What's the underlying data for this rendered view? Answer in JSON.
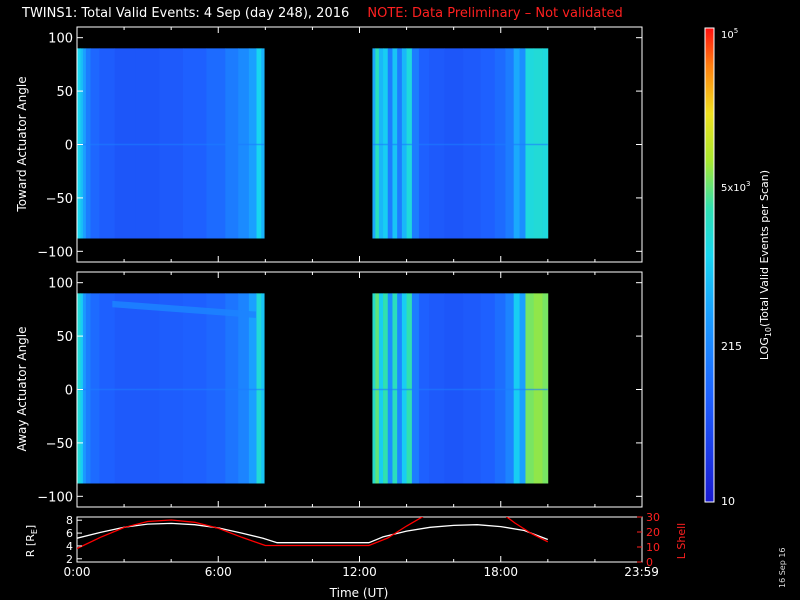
{
  "title": {
    "main": "TWINS1: Total Valid Events:  4 Sep (day 248), 2016",
    "note": "NOTE: Data Preliminary – Not validated"
  },
  "date_stamp": "16 Sep 16",
  "colors": {
    "background": "#000000",
    "foreground": "#ffffff",
    "note": "#ff2020",
    "l_shell_trace": "#ff0000",
    "r_trace": "#ffffff"
  },
  "chart_data": [
    {
      "type": "heatmap",
      "panel": "top",
      "ylabel": "Toward Actuator Angle",
      "ylim": [
        -110,
        110
      ],
      "yticks": [
        100,
        50,
        0,
        -50,
        -100
      ],
      "ytick_labels": [
        "100",
        "50",
        "0",
        "−50",
        "−100"
      ],
      "xlim": [
        0,
        24
      ],
      "data_blocks_hours": [
        [
          0.0,
          7.95
        ],
        [
          12.55,
          20.0
        ]
      ],
      "angle_range": [
        -88,
        90
      ],
      "column_levels_note": "0=dark blue (~10) to 1=red (~1e5)",
      "columns": [
        {
          "t": 0.1,
          "v": 0.52
        },
        {
          "t": 0.2,
          "v": 0.47
        },
        {
          "t": 0.3,
          "v": 0.4
        },
        {
          "t": 0.45,
          "v": 0.3
        },
        {
          "t": 0.7,
          "v": 0.24
        },
        {
          "t": 1.2,
          "v": 0.21
        },
        {
          "t": 2.0,
          "v": 0.19
        },
        {
          "t": 3.0,
          "v": 0.19
        },
        {
          "t": 4.0,
          "v": 0.2
        },
        {
          "t": 5.0,
          "v": 0.22
        },
        {
          "t": 6.0,
          "v": 0.25
        },
        {
          "t": 6.6,
          "v": 0.3
        },
        {
          "t": 7.1,
          "v": 0.34
        },
        {
          "t": 7.5,
          "v": 0.4
        },
        {
          "t": 7.75,
          "v": 0.52
        },
        {
          "t": 7.9,
          "v": 0.44
        },
        {
          "t": 12.6,
          "v": 0.42
        },
        {
          "t": 12.75,
          "v": 0.6
        },
        {
          "t": 12.9,
          "v": 0.45
        },
        {
          "t": 13.1,
          "v": 0.5
        },
        {
          "t": 13.3,
          "v": 0.3
        },
        {
          "t": 13.5,
          "v": 0.48
        },
        {
          "t": 13.7,
          "v": 0.3
        },
        {
          "t": 13.9,
          "v": 0.45
        },
        {
          "t": 14.1,
          "v": 0.55
        },
        {
          "t": 14.35,
          "v": 0.3
        },
        {
          "t": 14.7,
          "v": 0.22
        },
        {
          "t": 15.2,
          "v": 0.2
        },
        {
          "t": 16.0,
          "v": 0.19
        },
        {
          "t": 16.8,
          "v": 0.2
        },
        {
          "t": 17.5,
          "v": 0.22
        },
        {
          "t": 18.0,
          "v": 0.25
        },
        {
          "t": 18.4,
          "v": 0.3
        },
        {
          "t": 18.7,
          "v": 0.42
        },
        {
          "t": 18.9,
          "v": 0.35
        },
        {
          "t": 19.2,
          "v": 0.55
        },
        {
          "t": 19.6,
          "v": 0.56
        },
        {
          "t": 19.95,
          "v": 0.55
        }
      ]
    },
    {
      "type": "heatmap",
      "panel": "middle",
      "ylabel": "Away Actuator Angle",
      "ylim": [
        -110,
        110
      ],
      "yticks": [
        100,
        50,
        0,
        -50,
        -100
      ],
      "ytick_labels": [
        "100",
        "50",
        "0",
        "−50",
        "−100"
      ],
      "xlim": [
        0,
        24
      ],
      "data_blocks_hours": [
        [
          0.0,
          7.95
        ],
        [
          12.55,
          20.0
        ]
      ],
      "angle_range": [
        -88,
        90
      ],
      "column_levels_note": "0=dark blue (~10) to 1=red (~1e5)",
      "columns": [
        {
          "t": 0.1,
          "v": 0.56
        },
        {
          "t": 0.2,
          "v": 0.5
        },
        {
          "t": 0.3,
          "v": 0.38
        },
        {
          "t": 0.45,
          "v": 0.3
        },
        {
          "t": 0.7,
          "v": 0.25
        },
        {
          "t": 1.2,
          "v": 0.22
        },
        {
          "t": 2.0,
          "v": 0.2
        },
        {
          "t": 3.0,
          "v": 0.2
        },
        {
          "t": 4.0,
          "v": 0.21
        },
        {
          "t": 5.0,
          "v": 0.22
        },
        {
          "t": 6.0,
          "v": 0.24
        },
        {
          "t": 6.6,
          "v": 0.28
        },
        {
          "t": 7.1,
          "v": 0.32
        },
        {
          "t": 7.5,
          "v": 0.4
        },
        {
          "t": 7.75,
          "v": 0.56
        },
        {
          "t": 7.9,
          "v": 0.48
        },
        {
          "t": 12.6,
          "v": 0.58
        },
        {
          "t": 12.75,
          "v": 0.66
        },
        {
          "t": 12.9,
          "v": 0.5
        },
        {
          "t": 13.1,
          "v": 0.62
        },
        {
          "t": 13.3,
          "v": 0.35
        },
        {
          "t": 13.5,
          "v": 0.6
        },
        {
          "t": 13.7,
          "v": 0.33
        },
        {
          "t": 13.9,
          "v": 0.5
        },
        {
          "t": 14.1,
          "v": 0.62
        },
        {
          "t": 14.35,
          "v": 0.3
        },
        {
          "t": 14.7,
          "v": 0.22
        },
        {
          "t": 15.2,
          "v": 0.2
        },
        {
          "t": 16.0,
          "v": 0.19
        },
        {
          "t": 16.8,
          "v": 0.2
        },
        {
          "t": 17.5,
          "v": 0.22
        },
        {
          "t": 18.0,
          "v": 0.26
        },
        {
          "t": 18.4,
          "v": 0.32
        },
        {
          "t": 18.7,
          "v": 0.5
        },
        {
          "t": 18.9,
          "v": 0.4
        },
        {
          "t": 19.2,
          "v": 0.68
        },
        {
          "t": 19.6,
          "v": 0.7
        },
        {
          "t": 19.95,
          "v": 0.68
        }
      ],
      "features": [
        {
          "name": "upper-band",
          "t_range": [
            1.5,
            7.6
          ],
          "angle_start": 80,
          "angle_end": 70,
          "v": 0.32
        }
      ]
    },
    {
      "type": "line",
      "panel": "bottom",
      "ylabel_left": "R [RE]",
      "ylabel_right": "L Shell",
      "yticks_left": [
        2,
        4,
        6,
        8
      ],
      "yticks_right": [
        0,
        10,
        20,
        30
      ],
      "ylim_left": [
        1.5,
        8.5
      ],
      "ylim_right": [
        0,
        30
      ],
      "xlim": [
        0,
        24
      ],
      "xticks": [
        0,
        6,
        12,
        18,
        23.983
      ],
      "xtick_labels": [
        "0:00",
        "6:00",
        "12:00",
        "18:00",
        "23:59"
      ],
      "xlabel": "Time (UT)",
      "series": [
        {
          "axis": "left",
          "color": "#ffffff",
          "points": [
            [
              0,
              5.2
            ],
            [
              1,
              6.1
            ],
            [
              2,
              6.9
            ],
            [
              3,
              7.4
            ],
            [
              4,
              7.5
            ],
            [
              5,
              7.3
            ],
            [
              6,
              6.8
            ],
            [
              7,
              6.0
            ],
            [
              7.9,
              5.2
            ],
            [
              8.5,
              4.5
            ],
            [
              12.4,
              4.5
            ],
            [
              13,
              5.4
            ],
            [
              14,
              6.3
            ],
            [
              15,
              6.9
            ],
            [
              16,
              7.2
            ],
            [
              17,
              7.3
            ],
            [
              18,
              7.0
            ],
            [
              19,
              6.4
            ],
            [
              20,
              5.0
            ]
          ]
        },
        {
          "axis": "right",
          "color": "#ff0000",
          "points": [
            [
              0,
              9.0
            ],
            [
              1,
              16.5
            ],
            [
              2,
              23.0
            ],
            [
              3,
              27.0
            ],
            [
              4,
              28.0
            ],
            [
              5,
              26.5
            ],
            [
              6,
              22.5
            ],
            [
              7,
              16.5
            ],
            [
              8,
              11.0
            ],
            [
              12.4,
              11.0
            ],
            [
              13.2,
              16.0
            ],
            [
              14.0,
              24.0
            ],
            [
              15.0,
              33.0
            ]
          ]
        },
        {
          "axis": "right",
          "color": "#ff0000",
          "points": [
            [
              18.0,
              33.0
            ],
            [
              18.6,
              26.0
            ],
            [
              19.3,
              19.0
            ],
            [
              20.0,
              13.5
            ]
          ]
        }
      ]
    },
    {
      "type": "heatmap",
      "panel": "colorbar",
      "label": "LOG10(Total Valid Events per Scan)",
      "scale": "log",
      "range": [
        10,
        100000
      ],
      "tick_labels": [
        {
          "text": "10",
          "value": 10
        },
        {
          "text": "215",
          "value": 215
        },
        {
          "text": "5x10^3",
          "value": 5000
        },
        {
          "text": "10^5",
          "value": 100000
        }
      ]
    }
  ],
  "axis_labels": {
    "top_panel": "Toward Actuator Angle",
    "middle_panel": "Away Actuator Angle",
    "bottom_left_base": "R [R",
    "bottom_left_sub": "E",
    "bottom_left_close": "]",
    "bottom_right": "L Shell",
    "x": "Time (UT)",
    "colorbar_base": "LOG",
    "colorbar_sub": "10",
    "colorbar_rest": "(Total Valid Events per Scan)"
  },
  "colorbar_ticks": {
    "t10": "10",
    "t215": "215",
    "t5e3_base": "5x10",
    "t5e3_exp": "3",
    "t1e5_base": "10",
    "t1e5_exp": "5"
  }
}
